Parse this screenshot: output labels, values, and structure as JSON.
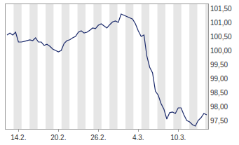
{
  "chart_data": {
    "type": "line",
    "categories": [
      null,
      null,
      null,
      null,
      "14.2.",
      null,
      null,
      null,
      null,
      null,
      null,
      null,
      null,
      null,
      null,
      null,
      null,
      null,
      "20.2.",
      null,
      null,
      null,
      null,
      null,
      null,
      null,
      null,
      null,
      null,
      null,
      null,
      null,
      "26.2.",
      null,
      null,
      null,
      null,
      null,
      null,
      null,
      null,
      null,
      null,
      null,
      null,
      null,
      "4.3.",
      null,
      null,
      null,
      null,
      null,
      null,
      null,
      null,
      null,
      null,
      null,
      null,
      null,
      "10.3.",
      null,
      null,
      null,
      null,
      null,
      null,
      null,
      null,
      null,
      null
    ],
    "values": [
      100.55,
      100.62,
      100.55,
      100.65,
      100.3,
      100.3,
      100.32,
      100.35,
      100.38,
      100.35,
      100.45,
      100.3,
      100.3,
      100.18,
      100.22,
      100.15,
      100.05,
      100.0,
      99.95,
      100.0,
      100.25,
      100.35,
      100.38,
      100.45,
      100.5,
      100.65,
      100.7,
      100.62,
      100.65,
      100.72,
      100.8,
      100.78,
      100.9,
      100.95,
      100.88,
      100.8,
      100.92,
      101.02,
      101.05,
      101.0,
      101.3,
      101.25,
      101.2,
      101.15,
      101.12,
      100.95,
      100.7,
      100.5,
      100.55,
      99.8,
      99.4,
      99.2,
      98.55,
      98.4,
      98.1,
      97.9,
      97.55,
      97.78,
      97.8,
      97.75,
      97.95,
      97.95,
      97.7,
      97.5,
      97.45,
      97.35,
      97.3,
      97.5,
      97.6,
      97.75,
      97.7
    ],
    "color": "#1b2a6b",
    "ylim": [
      97.2,
      101.65
    ],
    "yticks": [
      {
        "value": 97.5,
        "label": "97,50"
      },
      {
        "value": 98.0,
        "label": "98,00"
      },
      {
        "value": 98.5,
        "label": "98,50"
      },
      {
        "value": 99.0,
        "label": "99,00"
      },
      {
        "value": 99.5,
        "label": "99,50"
      },
      {
        "value": 100.0,
        "label": "100,00"
      },
      {
        "value": 100.5,
        "label": "100,50"
      },
      {
        "value": 101.0,
        "label": "101,00"
      },
      {
        "value": 101.5,
        "label": "101,50"
      }
    ],
    "grid": false
  }
}
